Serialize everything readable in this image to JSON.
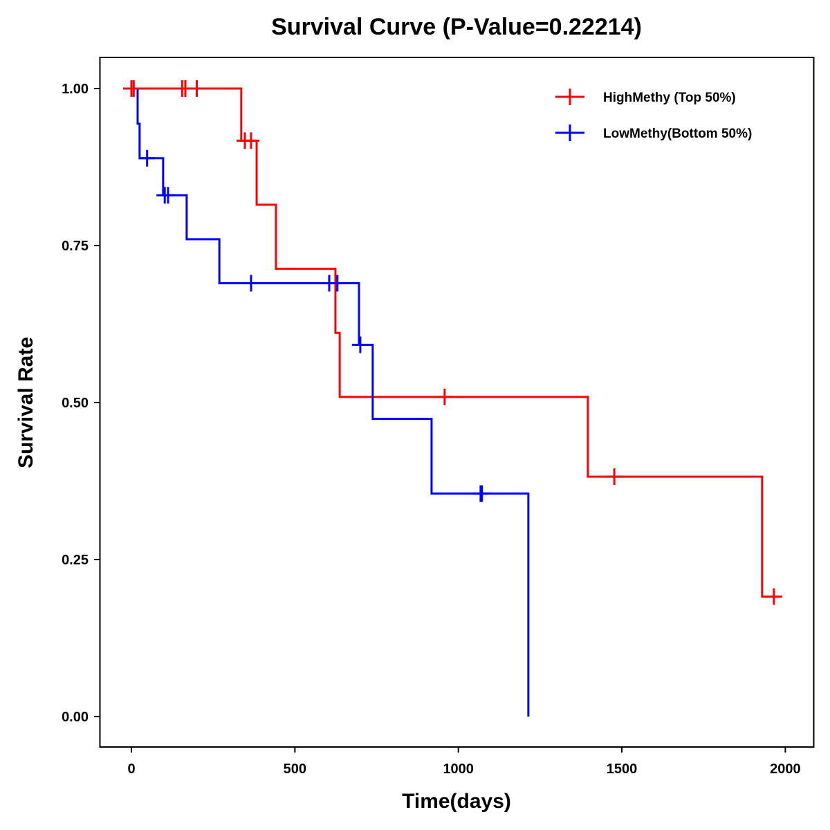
{
  "chart_data": {
    "type": "line",
    "subtype": "kaplan-meier-step",
    "title": "Survival Curve (P-Value=0.22214)",
    "p_value": 0.22214,
    "xlabel": "Time(days)",
    "ylabel": "Survival Rate",
    "xlim": [
      -80,
      2080
    ],
    "ylim": [
      -0.05,
      1.05
    ],
    "x_ticks": [
      0,
      500,
      1000,
      1500,
      2000
    ],
    "x_tick_labels": [
      "0",
      "500",
      "1000",
      "1500",
      "2000"
    ],
    "y_ticks": [
      0,
      0.25,
      0.5,
      0.75,
      1.0
    ],
    "y_tick_labels": [
      "0.00",
      "0.25",
      "0.50",
      "0.75",
      "1.00"
    ],
    "grid": false,
    "legend_position": "top-right",
    "series": [
      {
        "name": "HighMethy (Top 50%)",
        "color": "#ff0000",
        "steps": [
          {
            "time": 0,
            "survival": 1.0
          },
          {
            "time": 336,
            "survival": 0.917
          },
          {
            "time": 383,
            "survival": 0.815
          },
          {
            "time": 442,
            "survival": 0.713
          },
          {
            "time": 624,
            "survival": 0.611
          },
          {
            "time": 637,
            "survival": 0.509
          },
          {
            "time": 1396,
            "survival": 0.382
          },
          {
            "time": 1929,
            "survival": 0.191
          }
        ],
        "end_time": 1988,
        "censored": [
          {
            "time": 0,
            "survival": 1.0
          },
          {
            "time": 7,
            "survival": 1.0
          },
          {
            "time": 155,
            "survival": 1.0
          },
          {
            "time": 165,
            "survival": 1.0
          },
          {
            "time": 200,
            "survival": 1.0
          },
          {
            "time": 347,
            "survival": 0.917
          },
          {
            "time": 366,
            "survival": 0.917
          },
          {
            "time": 958,
            "survival": 0.509
          },
          {
            "time": 1477,
            "survival": 0.382
          },
          {
            "time": 1965,
            "survival": 0.191
          }
        ]
      },
      {
        "name": "LowMethy(Bottom 50%)",
        "color": "#0000ff",
        "steps": [
          {
            "time": 0,
            "survival": 1.0
          },
          {
            "time": 19,
            "survival": 0.944
          },
          {
            "time": 25,
            "survival": 0.889
          },
          {
            "time": 97,
            "survival": 0.83
          },
          {
            "time": 169,
            "survival": 0.76
          },
          {
            "time": 269,
            "survival": 0.69
          },
          {
            "time": 696,
            "survival": 0.592
          },
          {
            "time": 738,
            "survival": 0.474
          },
          {
            "time": 918,
            "survival": 0.355
          },
          {
            "time": 1214,
            "survival": 0.0
          }
        ],
        "end_time": 1214,
        "censored": [
          {
            "time": 48,
            "survival": 0.889
          },
          {
            "time": 102,
            "survival": 0.83
          },
          {
            "time": 112,
            "survival": 0.83
          },
          {
            "time": 366,
            "survival": 0.69
          },
          {
            "time": 605,
            "survival": 0.69
          },
          {
            "time": 630,
            "survival": 0.69
          },
          {
            "time": 700,
            "survival": 0.592
          },
          {
            "time": 1068,
            "survival": 0.355
          },
          {
            "time": 1072,
            "survival": 0.355
          }
        ]
      }
    ]
  }
}
